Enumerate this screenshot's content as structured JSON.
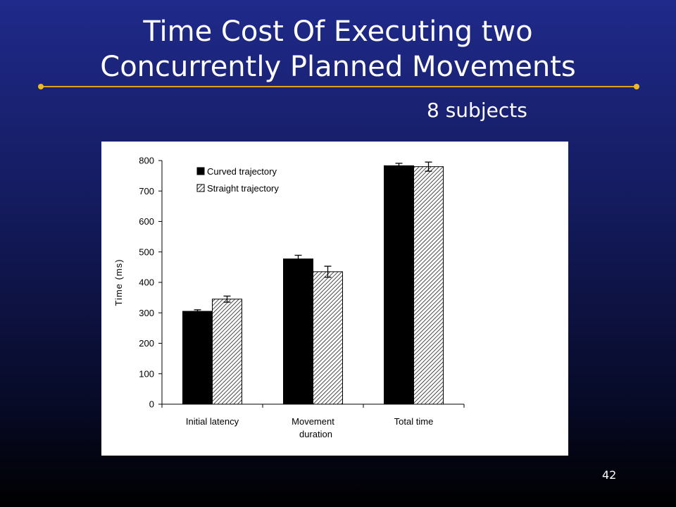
{
  "slide": {
    "title": "Time Cost Of  Executing two\nConcurrently Planned Movements",
    "subtitle": "8 subjects",
    "page_number": "42",
    "colors": {
      "accent_line": "#d8a21e",
      "background_top": "#1f2a8a",
      "background_bottom": "#000000"
    }
  },
  "chart_data": {
    "type": "bar",
    "title": "",
    "xlabel": "",
    "ylabel": "Time (ms)",
    "ylim": [
      0,
      800
    ],
    "yticks": [
      0,
      100,
      200,
      300,
      400,
      500,
      600,
      700,
      800
    ],
    "categories": [
      "Initial latency",
      "Movement\nduration",
      "Total time"
    ],
    "series": [
      {
        "name": "Curved trajectory",
        "fill": "solid-black",
        "values": [
          305,
          477,
          783
        ],
        "errors": [
          5,
          12,
          8
        ]
      },
      {
        "name": "Straight trajectory",
        "fill": "hatched",
        "values": [
          345,
          435,
          780
        ],
        "errors": [
          10,
          18,
          15
        ]
      }
    ],
    "legend": "top-left",
    "grid": false
  }
}
